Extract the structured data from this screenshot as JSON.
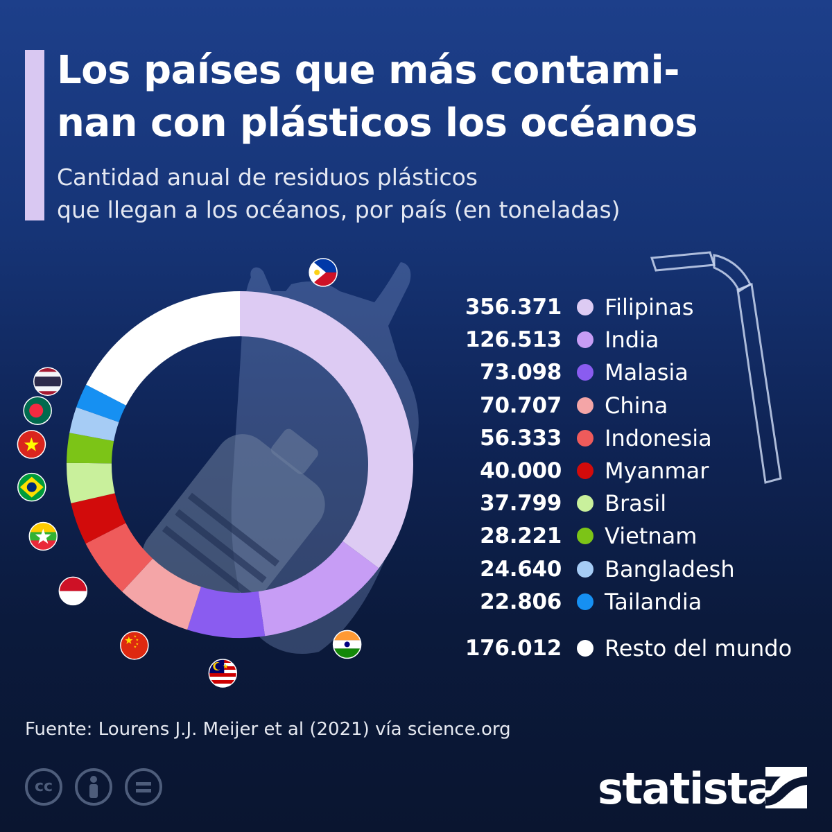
{
  "header": {
    "title_line1": "Los países que más contami-",
    "title_line2": "nan con plásticos los océanos",
    "subtitle_line1": "Cantidad anual de residuos plásticos",
    "subtitle_line2": "que llegan a los océanos, por país (en toneladas)"
  },
  "chart_data": {
    "type": "donut",
    "title": "Los países que más contaminan con plásticos los océanos",
    "subtitle": "Cantidad anual de residuos plásticos que llegan a los océanos, por país (en toneladas)",
    "legend_position": "right",
    "unit": "toneladas",
    "slices": [
      {
        "name": "Filipinas",
        "value": 356371,
        "label": "356.371",
        "color": "#ddcbf3",
        "flag": "philippines-flag-icon"
      },
      {
        "name": "India",
        "value": 126513,
        "label": "126.513",
        "color": "#c79df5",
        "flag": "india-flag-icon"
      },
      {
        "name": "Malasia",
        "value": 73098,
        "label": "73.098",
        "color": "#8a5cf0",
        "flag": "malaysia-flag-icon"
      },
      {
        "name": "China",
        "value": 70707,
        "label": "70.707",
        "color": "#f4a5a7",
        "flag": "china-flag-icon"
      },
      {
        "name": "Indonesia",
        "value": 56333,
        "label": "56.333",
        "color": "#ef5b5b",
        "flag": "indonesia-flag-icon"
      },
      {
        "name": "Myanmar",
        "value": 40000,
        "label": "40.000",
        "color": "#d20b0b",
        "flag": "myanmar-flag-icon"
      },
      {
        "name": "Brasil",
        "value": 37799,
        "label": "37.799",
        "color": "#c9f09c",
        "flag": "brazil-flag-icon"
      },
      {
        "name": "Vietnam",
        "value": 28221,
        "label": "28.221",
        "color": "#7cc417",
        "flag": "vietnam-flag-icon"
      },
      {
        "name": "Bangladesh",
        "value": 24640,
        "label": "24.640",
        "color": "#a6ccf5",
        "flag": "bangladesh-flag-icon"
      },
      {
        "name": "Tailandia",
        "value": 22806,
        "label": "22.806",
        "color": "#1690f2",
        "flag": "thailand-flag-icon"
      },
      {
        "name": "Resto del mundo",
        "value": 176012,
        "label": "176.012",
        "color": "#ffffff",
        "flag": ""
      }
    ]
  },
  "footer": {
    "source": "Fuente: Lourens J.J. Meijer et al (2021) vía science.org",
    "license_icons": [
      "cc-icon",
      "attribution-icon",
      "no-derivatives-icon"
    ],
    "brand": "statista",
    "brand_icon": "statista-logo-icon"
  },
  "icons": {
    "background_illustration": [
      "plastic-bag-icon",
      "plastic-bottle-icon",
      "drinking-straw-icon"
    ]
  }
}
